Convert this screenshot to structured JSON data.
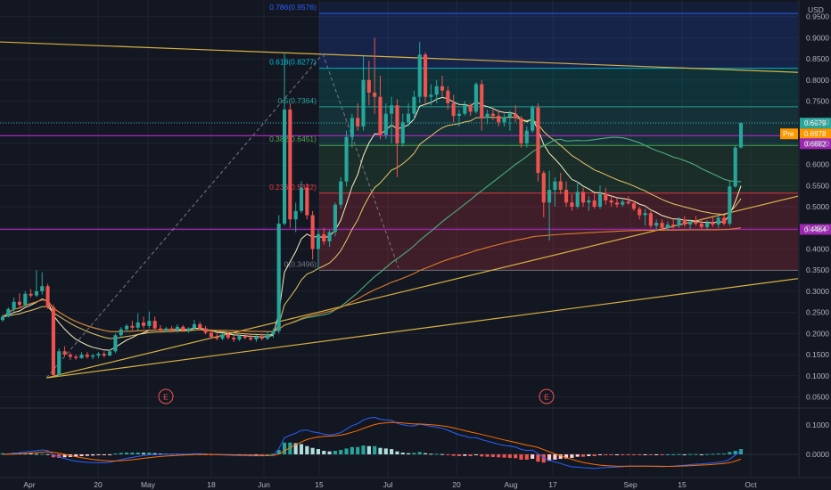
{
  "chart_data": {
    "type": "candlestick",
    "currency_label": "USD",
    "y_range": [
      0.03,
      0.985
    ],
    "y_ticks": [
      "0.9500",
      "0.9000",
      "0.8500",
      "0.8000",
      "0.7500",
      "0.7000",
      "0.6500",
      "0.6000",
      "0.5500",
      "0.5000",
      "0.4500",
      "0.4000",
      "0.3500",
      "0.3000",
      "0.2500",
      "0.2000",
      "0.1500",
      "0.1000",
      "0.0500"
    ],
    "x_tick_labels": [
      "Apr",
      "20",
      "May",
      "18",
      "Jun",
      "15",
      "Jul",
      "20",
      "Aug",
      "17",
      "Sep",
      "15",
      "Oct"
    ],
    "fib_levels": [
      {
        "label": "0.786(0.9576)",
        "value": 0.9576,
        "color": "#2962ff"
      },
      {
        "label": "0.618(0.8277)",
        "value": 0.8277,
        "color": "#00bcd4"
      },
      {
        "label": "0.5(0.7364)",
        "value": 0.7364,
        "color": "#26a69a"
      },
      {
        "label": "0.382(0.6451)",
        "value": 0.6451,
        "color": "#4caf50"
      },
      {
        "label": "0.236(0.5322)",
        "value": 0.5322,
        "color": "#f23645"
      },
      {
        "label": "0(0.3496)",
        "value": 0.3496,
        "color": "#787b86"
      }
    ],
    "horizontal_lines": [
      {
        "value": 0.6682,
        "color": "#9c27b0"
      },
      {
        "value": 0.4464,
        "color": "#9c27b0"
      }
    ],
    "price_tags": [
      {
        "label": "0.6979",
        "value": 0.6979,
        "color": "#26a69a"
      },
      {
        "label": "Pre",
        "value": 0.6978,
        "color": "#ff9800"
      },
      {
        "label": "0.6978",
        "value": 0.6978,
        "color": "#ff9800"
      },
      {
        "label": "0.6682",
        "value": 0.6682,
        "color": "#9c27b0"
      },
      {
        "label": "0.4464",
        "value": 0.4464,
        "color": "#9c27b0"
      }
    ],
    "event_markers": [
      "E",
      "E"
    ],
    "candles": [
      {
        "o": 0.232,
        "h": 0.245,
        "l": 0.228,
        "c": 0.24
      },
      {
        "o": 0.24,
        "h": 0.262,
        "l": 0.238,
        "c": 0.258
      },
      {
        "o": 0.258,
        "h": 0.285,
        "l": 0.252,
        "c": 0.275
      },
      {
        "o": 0.275,
        "h": 0.295,
        "l": 0.262,
        "c": 0.268
      },
      {
        "o": 0.268,
        "h": 0.3,
        "l": 0.264,
        "c": 0.294
      },
      {
        "o": 0.294,
        "h": 0.305,
        "l": 0.285,
        "c": 0.29
      },
      {
        "o": 0.29,
        "h": 0.35,
        "l": 0.286,
        "c": 0.3
      },
      {
        "o": 0.3,
        "h": 0.345,
        "l": 0.292,
        "c": 0.312
      },
      {
        "o": 0.312,
        "h": 0.318,
        "l": 0.258,
        "c": 0.262
      },
      {
        "o": 0.262,
        "h": 0.268,
        "l": 0.098,
        "c": 0.102
      },
      {
        "o": 0.102,
        "h": 0.165,
        "l": 0.098,
        "c": 0.158
      },
      {
        "o": 0.158,
        "h": 0.17,
        "l": 0.146,
        "c": 0.15
      },
      {
        "o": 0.15,
        "h": 0.155,
        "l": 0.138,
        "c": 0.145
      },
      {
        "o": 0.145,
        "h": 0.15,
        "l": 0.138,
        "c": 0.142
      },
      {
        "o": 0.142,
        "h": 0.156,
        "l": 0.14,
        "c": 0.15
      },
      {
        "o": 0.15,
        "h": 0.156,
        "l": 0.141,
        "c": 0.145
      },
      {
        "o": 0.145,
        "h": 0.152,
        "l": 0.139,
        "c": 0.148
      },
      {
        "o": 0.148,
        "h": 0.156,
        "l": 0.142,
        "c": 0.152
      },
      {
        "o": 0.152,
        "h": 0.158,
        "l": 0.143,
        "c": 0.148
      },
      {
        "o": 0.148,
        "h": 0.162,
        "l": 0.146,
        "c": 0.158
      },
      {
        "o": 0.158,
        "h": 0.2,
        "l": 0.154,
        "c": 0.196
      },
      {
        "o": 0.196,
        "h": 0.215,
        "l": 0.19,
        "c": 0.21
      },
      {
        "o": 0.21,
        "h": 0.222,
        "l": 0.205,
        "c": 0.218
      },
      {
        "o": 0.218,
        "h": 0.23,
        "l": 0.208,
        "c": 0.214
      },
      {
        "o": 0.214,
        "h": 0.248,
        "l": 0.208,
        "c": 0.226
      },
      {
        "o": 0.226,
        "h": 0.24,
        "l": 0.212,
        "c": 0.218
      },
      {
        "o": 0.218,
        "h": 0.252,
        "l": 0.212,
        "c": 0.23
      },
      {
        "o": 0.23,
        "h": 0.24,
        "l": 0.208,
        "c": 0.212
      },
      {
        "o": 0.212,
        "h": 0.22,
        "l": 0.204,
        "c": 0.208
      },
      {
        "o": 0.208,
        "h": 0.216,
        "l": 0.204,
        "c": 0.212
      },
      {
        "o": 0.212,
        "h": 0.218,
        "l": 0.205,
        "c": 0.208
      },
      {
        "o": 0.208,
        "h": 0.222,
        "l": 0.202,
        "c": 0.216
      },
      {
        "o": 0.216,
        "h": 0.22,
        "l": 0.204,
        "c": 0.207
      },
      {
        "o": 0.207,
        "h": 0.215,
        "l": 0.202,
        "c": 0.212
      },
      {
        "o": 0.212,
        "h": 0.232,
        "l": 0.206,
        "c": 0.222
      },
      {
        "o": 0.222,
        "h": 0.228,
        "l": 0.208,
        "c": 0.212
      },
      {
        "o": 0.212,
        "h": 0.218,
        "l": 0.198,
        "c": 0.202
      },
      {
        "o": 0.202,
        "h": 0.21,
        "l": 0.188,
        "c": 0.192
      },
      {
        "o": 0.192,
        "h": 0.2,
        "l": 0.184,
        "c": 0.188
      },
      {
        "o": 0.188,
        "h": 0.202,
        "l": 0.184,
        "c": 0.198
      },
      {
        "o": 0.198,
        "h": 0.204,
        "l": 0.186,
        "c": 0.19
      },
      {
        "o": 0.19,
        "h": 0.196,
        "l": 0.18,
        "c": 0.186
      },
      {
        "o": 0.186,
        "h": 0.198,
        "l": 0.182,
        "c": 0.194
      },
      {
        "o": 0.194,
        "h": 0.2,
        "l": 0.186,
        "c": 0.19
      },
      {
        "o": 0.19,
        "h": 0.198,
        "l": 0.182,
        "c": 0.186
      },
      {
        "o": 0.186,
        "h": 0.196,
        "l": 0.18,
        "c": 0.192
      },
      {
        "o": 0.192,
        "h": 0.2,
        "l": 0.184,
        "c": 0.188
      },
      {
        "o": 0.188,
        "h": 0.205,
        "l": 0.184,
        "c": 0.198
      },
      {
        "o": 0.198,
        "h": 0.212,
        "l": 0.19,
        "c": 0.206
      },
      {
        "o": 0.206,
        "h": 0.48,
        "l": 0.2,
        "c": 0.46
      },
      {
        "o": 0.46,
        "h": 0.865,
        "l": 0.455,
        "c": 0.73
      },
      {
        "o": 0.73,
        "h": 0.745,
        "l": 0.45,
        "c": 0.47
      },
      {
        "o": 0.47,
        "h": 0.51,
        "l": 0.44,
        "c": 0.49
      },
      {
        "o": 0.49,
        "h": 0.56,
        "l": 0.485,
        "c": 0.545
      },
      {
        "o": 0.545,
        "h": 0.555,
        "l": 0.47,
        "c": 0.48
      },
      {
        "o": 0.48,
        "h": 0.49,
        "l": 0.375,
        "c": 0.4
      },
      {
        "o": 0.4,
        "h": 0.445,
        "l": 0.352,
        "c": 0.435
      },
      {
        "o": 0.435,
        "h": 0.45,
        "l": 0.41,
        "c": 0.418
      },
      {
        "o": 0.418,
        "h": 0.445,
        "l": 0.405,
        "c": 0.44
      },
      {
        "o": 0.44,
        "h": 0.51,
        "l": 0.43,
        "c": 0.505
      },
      {
        "o": 0.505,
        "h": 0.57,
        "l": 0.495,
        "c": 0.56
      },
      {
        "o": 0.56,
        "h": 0.68,
        "l": 0.548,
        "c": 0.665
      },
      {
        "o": 0.665,
        "h": 0.72,
        "l": 0.64,
        "c": 0.71
      },
      {
        "o": 0.71,
        "h": 0.745,
        "l": 0.68,
        "c": 0.69
      },
      {
        "o": 0.69,
        "h": 0.86,
        "l": 0.68,
        "c": 0.8
      },
      {
        "o": 0.8,
        "h": 0.845,
        "l": 0.74,
        "c": 0.77
      },
      {
        "o": 0.77,
        "h": 0.9,
        "l": 0.72,
        "c": 0.76
      },
      {
        "o": 0.76,
        "h": 0.81,
        "l": 0.66,
        "c": 0.67
      },
      {
        "o": 0.67,
        "h": 0.745,
        "l": 0.66,
        "c": 0.72
      },
      {
        "o": 0.72,
        "h": 0.76,
        "l": 0.65,
        "c": 0.74
      },
      {
        "o": 0.74,
        "h": 0.755,
        "l": 0.57,
        "c": 0.65
      },
      {
        "o": 0.65,
        "h": 0.72,
        "l": 0.642,
        "c": 0.7
      },
      {
        "o": 0.7,
        "h": 0.745,
        "l": 0.69,
        "c": 0.72
      },
      {
        "o": 0.72,
        "h": 0.775,
        "l": 0.705,
        "c": 0.76
      },
      {
        "o": 0.76,
        "h": 0.89,
        "l": 0.745,
        "c": 0.86
      },
      {
        "o": 0.86,
        "h": 0.865,
        "l": 0.74,
        "c": 0.76
      },
      {
        "o": 0.76,
        "h": 0.79,
        "l": 0.74,
        "c": 0.765
      },
      {
        "o": 0.765,
        "h": 0.8,
        "l": 0.745,
        "c": 0.785
      },
      {
        "o": 0.785,
        "h": 0.81,
        "l": 0.76,
        "c": 0.775
      },
      {
        "o": 0.775,
        "h": 0.785,
        "l": 0.73,
        "c": 0.745
      },
      {
        "o": 0.745,
        "h": 0.765,
        "l": 0.7,
        "c": 0.715
      },
      {
        "o": 0.715,
        "h": 0.73,
        "l": 0.69,
        "c": 0.72
      },
      {
        "o": 0.72,
        "h": 0.75,
        "l": 0.715,
        "c": 0.74
      },
      {
        "o": 0.74,
        "h": 0.745,
        "l": 0.715,
        "c": 0.725
      },
      {
        "o": 0.725,
        "h": 0.795,
        "l": 0.72,
        "c": 0.79
      },
      {
        "o": 0.79,
        "h": 0.8,
        "l": 0.68,
        "c": 0.71
      },
      {
        "o": 0.71,
        "h": 0.73,
        "l": 0.695,
        "c": 0.72
      },
      {
        "o": 0.72,
        "h": 0.735,
        "l": 0.705,
        "c": 0.715
      },
      {
        "o": 0.715,
        "h": 0.73,
        "l": 0.69,
        "c": 0.7
      },
      {
        "o": 0.7,
        "h": 0.72,
        "l": 0.69,
        "c": 0.712
      },
      {
        "o": 0.712,
        "h": 0.728,
        "l": 0.68,
        "c": 0.72
      },
      {
        "o": 0.72,
        "h": 0.74,
        "l": 0.7,
        "c": 0.71
      },
      {
        "o": 0.71,
        "h": 0.715,
        "l": 0.64,
        "c": 0.65
      },
      {
        "o": 0.65,
        "h": 0.69,
        "l": 0.64,
        "c": 0.68
      },
      {
        "o": 0.68,
        "h": 0.74,
        "l": 0.675,
        "c": 0.735
      },
      {
        "o": 0.735,
        "h": 0.745,
        "l": 0.56,
        "c": 0.58
      },
      {
        "o": 0.58,
        "h": 0.585,
        "l": 0.475,
        "c": 0.51
      },
      {
        "o": 0.51,
        "h": 0.585,
        "l": 0.42,
        "c": 0.54
      },
      {
        "o": 0.54,
        "h": 0.57,
        "l": 0.5,
        "c": 0.56
      },
      {
        "o": 0.56,
        "h": 0.58,
        "l": 0.53,
        "c": 0.54
      },
      {
        "o": 0.54,
        "h": 0.56,
        "l": 0.5,
        "c": 0.51
      },
      {
        "o": 0.51,
        "h": 0.53,
        "l": 0.49,
        "c": 0.5
      },
      {
        "o": 0.5,
        "h": 0.56,
        "l": 0.495,
        "c": 0.535
      },
      {
        "o": 0.535,
        "h": 0.545,
        "l": 0.5,
        "c": 0.51
      },
      {
        "o": 0.51,
        "h": 0.525,
        "l": 0.49,
        "c": 0.515
      },
      {
        "o": 0.515,
        "h": 0.53,
        "l": 0.495,
        "c": 0.5
      },
      {
        "o": 0.5,
        "h": 0.55,
        "l": 0.495,
        "c": 0.53
      },
      {
        "o": 0.53,
        "h": 0.545,
        "l": 0.505,
        "c": 0.515
      },
      {
        "o": 0.515,
        "h": 0.525,
        "l": 0.5,
        "c": 0.51
      },
      {
        "o": 0.51,
        "h": 0.52,
        "l": 0.498,
        "c": 0.505
      },
      {
        "o": 0.505,
        "h": 0.52,
        "l": 0.5,
        "c": 0.512
      },
      {
        "o": 0.512,
        "h": 0.525,
        "l": 0.505,
        "c": 0.508
      },
      {
        "o": 0.508,
        "h": 0.515,
        "l": 0.49,
        "c": 0.495
      },
      {
        "o": 0.495,
        "h": 0.5,
        "l": 0.47,
        "c": 0.48
      },
      {
        "o": 0.48,
        "h": 0.495,
        "l": 0.455,
        "c": 0.485
      },
      {
        "o": 0.485,
        "h": 0.49,
        "l": 0.45,
        "c": 0.455
      },
      {
        "o": 0.455,
        "h": 0.47,
        "l": 0.445,
        "c": 0.462
      },
      {
        "o": 0.462,
        "h": 0.47,
        "l": 0.445,
        "c": 0.45
      },
      {
        "o": 0.45,
        "h": 0.465,
        "l": 0.444,
        "c": 0.458
      },
      {
        "o": 0.458,
        "h": 0.47,
        "l": 0.448,
        "c": 0.455
      },
      {
        "o": 0.455,
        "h": 0.475,
        "l": 0.45,
        "c": 0.47
      },
      {
        "o": 0.47,
        "h": 0.478,
        "l": 0.452,
        "c": 0.458
      },
      {
        "o": 0.458,
        "h": 0.47,
        "l": 0.447,
        "c": 0.465
      },
      {
        "o": 0.465,
        "h": 0.478,
        "l": 0.455,
        "c": 0.46
      },
      {
        "o": 0.46,
        "h": 0.472,
        "l": 0.448,
        "c": 0.452
      },
      {
        "o": 0.452,
        "h": 0.468,
        "l": 0.447,
        "c": 0.462
      },
      {
        "o": 0.462,
        "h": 0.475,
        "l": 0.452,
        "c": 0.458
      },
      {
        "o": 0.458,
        "h": 0.48,
        "l": 0.45,
        "c": 0.474
      },
      {
        "o": 0.474,
        "h": 0.48,
        "l": 0.455,
        "c": 0.46
      },
      {
        "o": 0.46,
        "h": 0.56,
        "l": 0.455,
        "c": 0.548
      },
      {
        "o": 0.548,
        "h": 0.645,
        "l": 0.545,
        "c": 0.64
      },
      {
        "o": 0.64,
        "h": 0.7,
        "l": 0.638,
        "c": 0.698
      }
    ],
    "macd_hist": [
      0.004,
      0.003,
      0.006,
      0.005,
      0.004,
      0.003,
      0.002,
      0.002,
      0.001,
      -0.01,
      -0.012,
      -0.01,
      -0.009,
      -0.008,
      -0.006,
      -0.005,
      -0.004,
      -0.003,
      -0.002,
      -0.001,
      0.003,
      0.005,
      0.006,
      0.006,
      0.006,
      0.005,
      0.006,
      0.004,
      0.003,
      0.003,
      0.002,
      0.002,
      0.001,
      0.001,
      0.002,
      0.001,
      -0.001,
      -0.002,
      -0.003,
      -0.002,
      -0.002,
      -0.003,
      -0.002,
      -0.002,
      -0.002,
      -0.001,
      -0.001,
      0.0,
      0.002,
      0.015,
      0.04,
      0.04,
      0.038,
      0.035,
      0.028,
      0.022,
      0.018,
      0.012,
      0.01,
      0.012,
      0.015,
      0.02,
      0.025,
      0.025,
      0.03,
      0.028,
      0.028,
      0.022,
      0.02,
      0.018,
      0.01,
      0.006,
      0.004,
      0.005,
      0.008,
      0.004,
      0.002,
      0.002,
      0.001,
      -0.002,
      -0.005,
      -0.006,
      -0.005,
      -0.006,
      -0.003,
      -0.007,
      -0.008,
      -0.009,
      -0.01,
      -0.011,
      -0.012,
      -0.013,
      -0.018,
      -0.018,
      -0.015,
      -0.025,
      -0.028,
      -0.022,
      -0.018,
      -0.015,
      -0.014,
      -0.012,
      -0.008,
      -0.008,
      -0.006,
      -0.006,
      -0.003,
      -0.003,
      -0.003,
      -0.002,
      -0.002,
      -0.002,
      -0.002,
      -0.002,
      -0.001,
      -0.002,
      -0.001,
      -0.001,
      0.0,
      0.0,
      0.001,
      0.0,
      0.001,
      0.001,
      0.0,
      0.001,
      0.002,
      0.003,
      0.003,
      0.008,
      0.012,
      0.018
    ]
  }
}
